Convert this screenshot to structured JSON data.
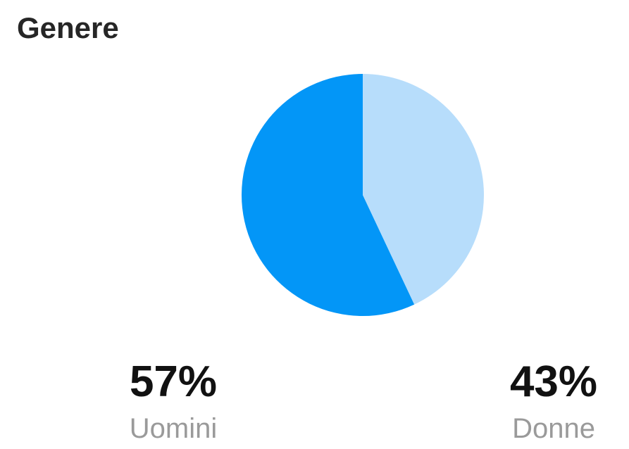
{
  "header": {
    "title": "Genere"
  },
  "chart_data": {
    "type": "pie",
    "categories": [
      "Uomini",
      "Donne"
    ],
    "values": [
      57,
      43
    ],
    "value_labels": [
      "57%",
      "43%"
    ],
    "colors": [
      "#0396f7",
      "#b7ddfb"
    ],
    "start": "top",
    "direction": "counterclockwise",
    "legend": "bottom"
  }
}
